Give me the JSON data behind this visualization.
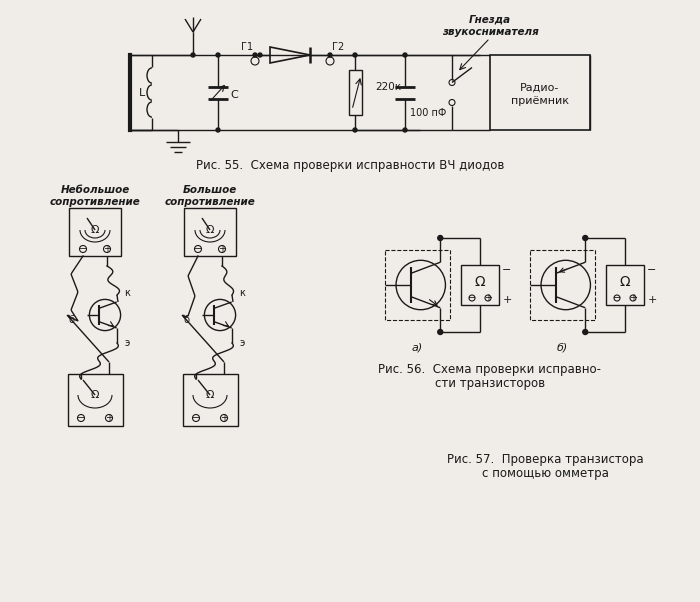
{
  "fig55_caption": "Рис. 55.  Схема проверки исправности ВЧ диодов",
  "fig56_caption_line1": "Рис. 56.  Схема проверки исправно-",
  "fig56_caption_line2": "сти транзисторов",
  "fig57_caption_line1": "Рис. 57.  Проверка транзистора",
  "fig57_caption_line2": "с помощью омметра",
  "label_nebolshoe_line1": "Небольшое",
  "label_nebolshoe_line2": "сопротивление",
  "label_bolshoe_line1": "Большое",
  "label_bolshoe_line2": "сопротивление",
  "label_gnezda_line1": "Гнезда",
  "label_gnezda_line2": "звукоснимателя",
  "label_radio": "Радио-\nприёмник",
  "label_220k": "220к",
  "label_100pf": "100 пФ",
  "label_L": "L",
  "label_C": "C",
  "label_G1": "Г1",
  "label_G2": "Г2",
  "label_a": "а)",
  "label_b": "б)",
  "label_b_tr": "б",
  "label_k_tr": "к",
  "label_e_tr": "э",
  "bg_color": "#f0ede8",
  "line_color": "#1a1a1a",
  "text_color": "#1a1a1a"
}
